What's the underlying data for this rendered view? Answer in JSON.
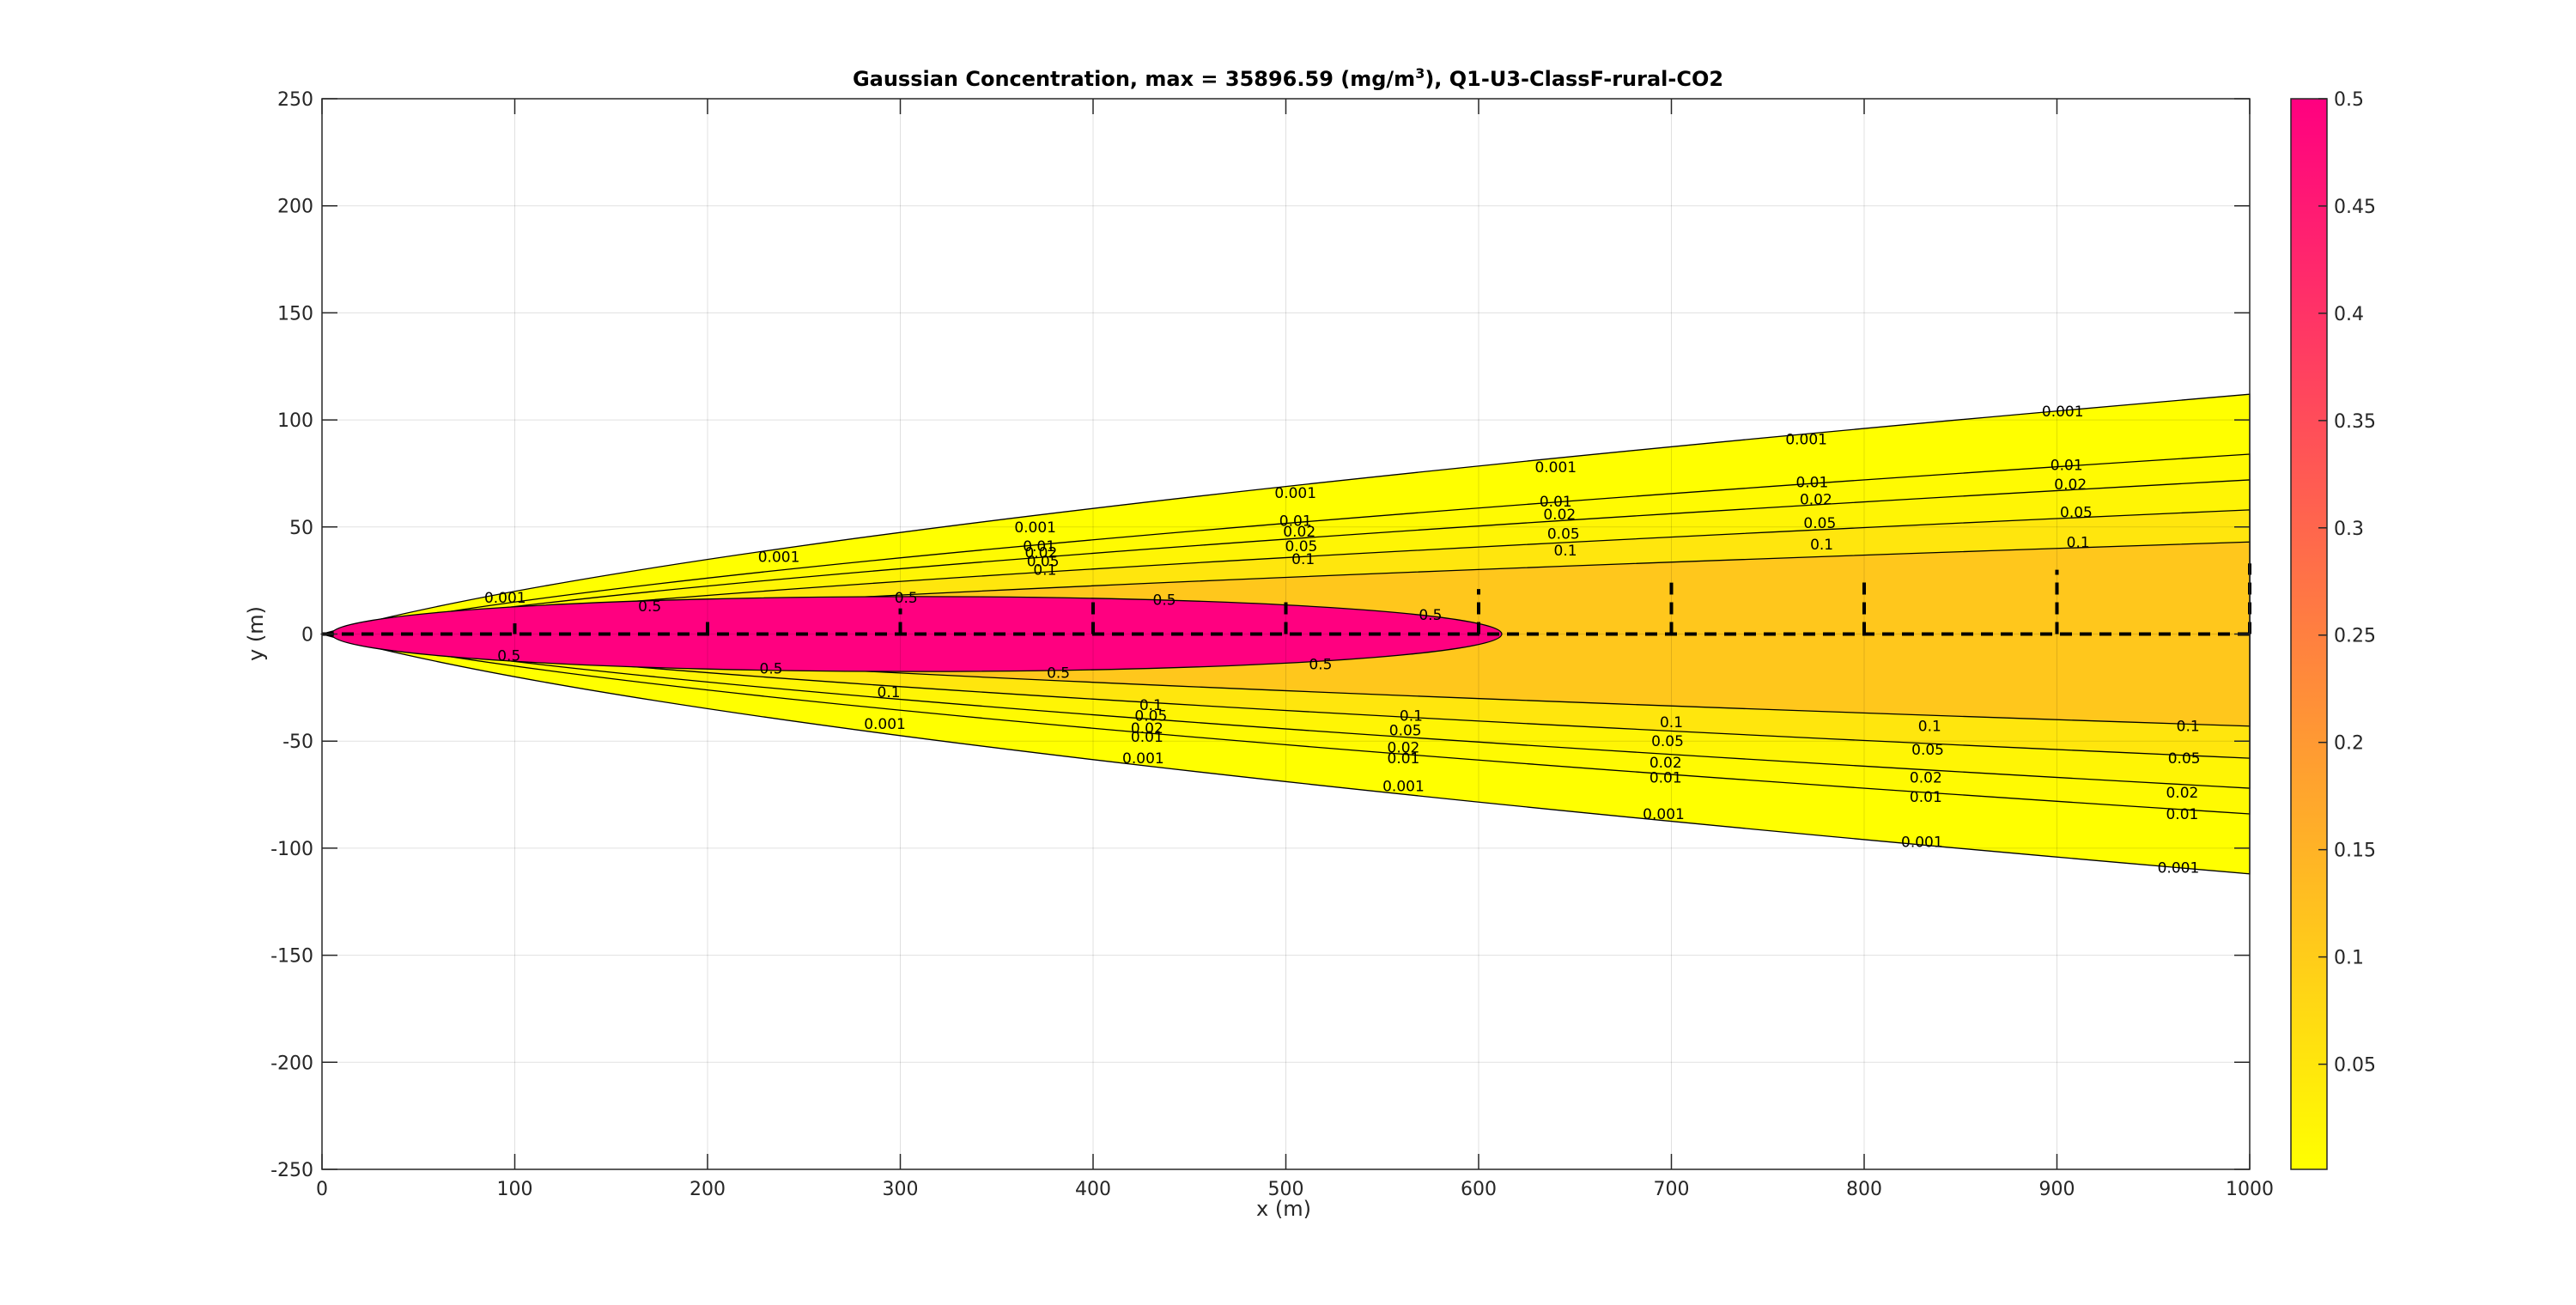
{
  "chart_data": {
    "type": "contour",
    "title": {
      "prefix": "Gaussian Concentration, max = 35896.59 (mg/m",
      "superscript": "3",
      "suffix": "), Q1-U3-ClassF-rural-CO2"
    },
    "xlabel": "x (m)",
    "ylabel": "y (m)",
    "xlim": [
      0,
      1000
    ],
    "ylim": [
      -250,
      250
    ],
    "xticks": [
      "0",
      "100",
      "200",
      "300",
      "400",
      "500",
      "600",
      "700",
      "800",
      "900",
      "1000"
    ],
    "yticks": [
      "250",
      "200",
      "150",
      "100",
      "50",
      "0",
      "-50",
      "-100",
      "-150",
      "-200",
      "-250"
    ],
    "grid": true,
    "colorbar": {
      "min": 0.001,
      "max": 0.5,
      "ticks": [
        "0.5",
        "0.45",
        "0.4",
        "0.35",
        "0.3",
        "0.25",
        "0.2",
        "0.15",
        "0.1",
        "0.05"
      ],
      "color_low": "#ffff00",
      "color_high": "#ff0080",
      "placement": "right"
    },
    "contour_levels": [
      0.001,
      0.01,
      0.02,
      0.05,
      0.1,
      0.5
    ],
    "plume_half_width_at_x1000": {
      "0.001": 112,
      "0.01": 84,
      "0.02": 72,
      "0.05": 58,
      "0.1": 43
    },
    "high_zone": {
      "level": 0.5,
      "x_start": 5,
      "x_end": 612,
      "half_width_max": 17.5
    },
    "centerline": {
      "y": 0,
      "style": "dashed"
    },
    "cross_sections": [
      {
        "x": 100,
        "height": 5
      },
      {
        "x": 200,
        "height": 9
      },
      {
        "x": 300,
        "height": 12
      },
      {
        "x": 400,
        "height": 15
      },
      {
        "x": 500,
        "height": 17
      },
      {
        "x": 600,
        "height": 21
      },
      {
        "x": 700,
        "height": 24
      },
      {
        "x": 800,
        "height": 27
      },
      {
        "x": 900,
        "height": 30
      },
      {
        "x": 1000,
        "height": 33
      }
    ],
    "contour_labels": [
      {
        "text": "0.001",
        "x": 95,
        "y": 17
      },
      {
        "text": "0.001",
        "x": 237,
        "y": 36
      },
      {
        "text": "0.001",
        "x": 370,
        "y": 50
      },
      {
        "text": "0.001",
        "x": 505,
        "y": 66
      },
      {
        "text": "0.001",
        "x": 640,
        "y": 78
      },
      {
        "text": "0.001",
        "x": 770,
        "y": 91
      },
      {
        "text": "0.001",
        "x": 903,
        "y": 104
      },
      {
        "text": "0.01",
        "x": 372,
        "y": 41
      },
      {
        "text": "0.01",
        "x": 505,
        "y": 53
      },
      {
        "text": "0.01",
        "x": 640,
        "y": 62
      },
      {
        "text": "0.01",
        "x": 773,
        "y": 71
      },
      {
        "text": "0.01",
        "x": 905,
        "y": 79
      },
      {
        "text": "0.02",
        "x": 373,
        "y": 38
      },
      {
        "text": "0.02",
        "x": 507,
        "y": 48
      },
      {
        "text": "0.02",
        "x": 642,
        "y": 56
      },
      {
        "text": "0.02",
        "x": 775,
        "y": 63
      },
      {
        "text": "0.02",
        "x": 907,
        "y": 70
      },
      {
        "text": "0.05",
        "x": 374,
        "y": 34
      },
      {
        "text": "0.05",
        "x": 508,
        "y": 41
      },
      {
        "text": "0.05",
        "x": 644,
        "y": 47
      },
      {
        "text": "0.05",
        "x": 777,
        "y": 52
      },
      {
        "text": "0.05",
        "x": 910,
        "y": 57
      },
      {
        "text": "0.1",
        "x": 375,
        "y": 30
      },
      {
        "text": "0.1",
        "x": 509,
        "y": 35
      },
      {
        "text": "0.1",
        "x": 645,
        "y": 39
      },
      {
        "text": "0.1",
        "x": 778,
        "y": 42
      },
      {
        "text": "0.1",
        "x": 911,
        "y": 43
      },
      {
        "text": "0.5",
        "x": 170,
        "y": 13
      },
      {
        "text": "0.5",
        "x": 303,
        "y": 17
      },
      {
        "text": "0.5",
        "x": 437,
        "y": 16
      },
      {
        "text": "0.5",
        "x": 575,
        "y": 9
      },
      {
        "text": "0.5",
        "x": 97,
        "y": -10
      },
      {
        "text": "0.5",
        "x": 233,
        "y": -16
      },
      {
        "text": "0.5",
        "x": 382,
        "y": -18
      },
      {
        "text": "0.5",
        "x": 518,
        "y": -14
      },
      {
        "text": "0.1",
        "x": 294,
        "y": -27
      },
      {
        "text": "0.1",
        "x": 430,
        "y": -33
      },
      {
        "text": "0.1",
        "x": 565,
        "y": -38
      },
      {
        "text": "0.1",
        "x": 700,
        "y": -41
      },
      {
        "text": "0.1",
        "x": 834,
        "y": -43
      },
      {
        "text": "0.1",
        "x": 968,
        "y": -43
      },
      {
        "text": "0.05",
        "x": 430,
        "y": -38
      },
      {
        "text": "0.05",
        "x": 562,
        "y": -45
      },
      {
        "text": "0.05",
        "x": 698,
        "y": -50
      },
      {
        "text": "0.05",
        "x": 833,
        "y": -54
      },
      {
        "text": "0.05",
        "x": 966,
        "y": -58
      },
      {
        "text": "0.02",
        "x": 428,
        "y": -44
      },
      {
        "text": "0.02",
        "x": 561,
        "y": -53
      },
      {
        "text": "0.02",
        "x": 697,
        "y": -60
      },
      {
        "text": "0.02",
        "x": 832,
        "y": -67
      },
      {
        "text": "0.02",
        "x": 965,
        "y": -74
      },
      {
        "text": "0.01",
        "x": 428,
        "y": -48
      },
      {
        "text": "0.01",
        "x": 561,
        "y": -58
      },
      {
        "text": "0.01",
        "x": 697,
        "y": -67
      },
      {
        "text": "0.01",
        "x": 832,
        "y": -76
      },
      {
        "text": "0.01",
        "x": 965,
        "y": -84
      },
      {
        "text": "0.001",
        "x": 292,
        "y": -42
      },
      {
        "text": "0.001",
        "x": 426,
        "y": -58
      },
      {
        "text": "0.001",
        "x": 561,
        "y": -71
      },
      {
        "text": "0.001",
        "x": 696,
        "y": -84
      },
      {
        "text": "0.001",
        "x": 830,
        "y": -97
      },
      {
        "text": "0.001",
        "x": 963,
        "y": -109
      }
    ]
  }
}
